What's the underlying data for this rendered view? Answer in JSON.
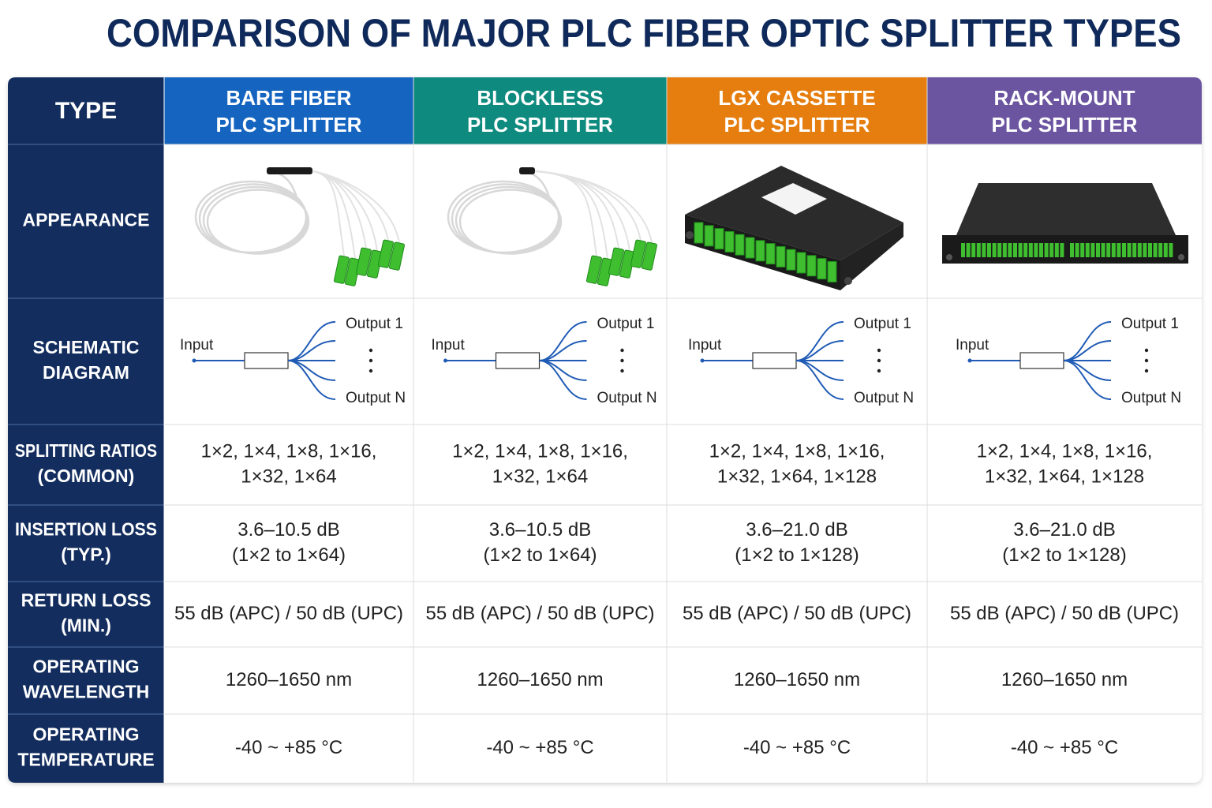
{
  "title": "COMPARISON OF MAJOR PLC FIBER OPTIC SPLITTER TYPES",
  "table": {
    "header": {
      "label": "TYPE",
      "columns": [
        [
          "BARE FIBER",
          "PLC SPLITTER"
        ],
        [
          "BLOCKLESS",
          "PLC SPLITTER"
        ],
        [
          "LGX CASSETTE",
          "PLC SPLITTER"
        ],
        [
          "RACK-MOUNT",
          "PLC SPLITTER"
        ]
      ]
    },
    "rows": [
      {
        "label": [
          "APPEARANCE"
        ]
      },
      {
        "label": [
          "SCHEMATIC",
          "DIAGRAM"
        ],
        "cells": [
          {
            "input": "Input",
            "output_first": "Output 1",
            "output_last": "Output N"
          },
          {
            "input": "Input",
            "output_first": "Output 1",
            "output_last": "Output N"
          },
          {
            "input": "Input",
            "output_first": "Output 1",
            "output_last": "Output N"
          },
          {
            "input": "Input",
            "output_first": "Output 1",
            "output_last": "Output N"
          }
        ]
      },
      {
        "label": [
          "SPLITTING RATIOS",
          "(COMMON)"
        ],
        "cells": [
          [
            "1×2, 1×4, 1×8, 1×16,",
            "1×32, 1×64"
          ],
          [
            "1×2, 1×4, 1×8, 1×16,",
            "1×32, 1×64"
          ],
          [
            "1×2, 1×4, 1×8, 1×16,",
            "1×32, 1×64, 1×128"
          ],
          [
            "1×2, 1×4, 1×8, 1×16,",
            "1×32, 1×64, 1×128"
          ]
        ]
      },
      {
        "label": [
          "INSERTION LOSS",
          "(TYP.)"
        ],
        "cells": [
          [
            "3.6–10.5 dB",
            "(1×2 to 1×64)"
          ],
          [
            "3.6–10.5 dB",
            "(1×2 to 1×64)"
          ],
          [
            "3.6–21.0 dB",
            "(1×2 to 1×128)"
          ],
          [
            "3.6–21.0 dB",
            "(1×2 to 1×128)"
          ]
        ]
      },
      {
        "label": [
          "RETURN LOSS",
          "(MIN.)"
        ],
        "cells": [
          [
            "55 dB (APC) / 50 dB (UPC)"
          ],
          [
            "55 dB (APC) / 50 dB (UPC)"
          ],
          [
            "55 dB (APC) / 50 dB (UPC)"
          ],
          [
            "55 dB (APC) / 50 dB (UPC)"
          ]
        ]
      },
      {
        "label": [
          "OPERATING",
          "WAVELENGTH"
        ],
        "cells": [
          [
            "1260–1650 nm"
          ],
          [
            "1260–1650 nm"
          ],
          [
            "1260–1650 nm"
          ],
          [
            "1260–1650 nm"
          ]
        ]
      },
      {
        "label": [
          "OPERATING",
          "TEMPERATURE"
        ],
        "cells": [
          [
            "-40 ~ +85 °C"
          ],
          [
            "-40 ~ +85 °C"
          ],
          [
            "-40 ~ +85 °C"
          ],
          [
            "-40 ~ +85 °C"
          ]
        ]
      }
    ]
  }
}
